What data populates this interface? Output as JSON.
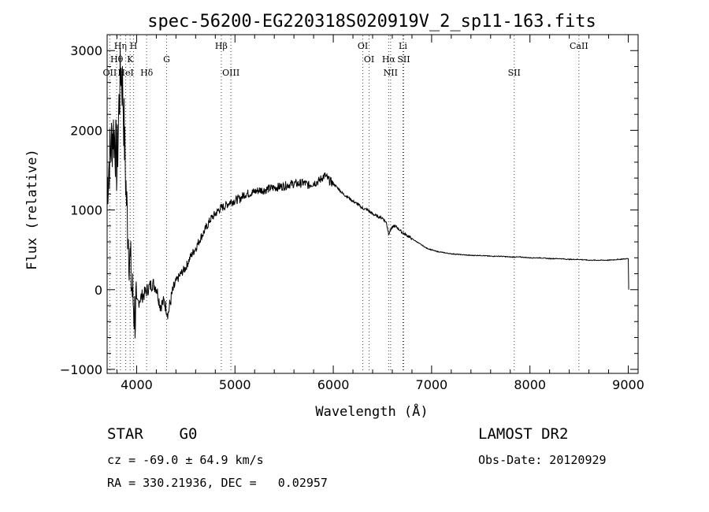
{
  "chart_data": {
    "type": "line",
    "title": "spec-56200-EG220318S020919V_2_sp11-163.fits",
    "xlabel": "Wavelength (Å)",
    "ylabel": "Flux (relative)",
    "xlim": [
      3700,
      9100
    ],
    "ylim": [
      -1050,
      3200
    ],
    "xticks": [
      4000,
      5000,
      6000,
      7000,
      8000,
      9000
    ],
    "yticks": [
      -1000,
      0,
      1000,
      2000,
      3000
    ],
    "grid": false,
    "line_color": "#000000",
    "marker_color": "#cc0000",
    "series": [
      {
        "x": [
          3700,
          3720,
          3740,
          3760,
          3780,
          3800,
          3820,
          3840,
          3860,
          3880,
          3900,
          3920,
          3940,
          3960,
          3980,
          4000,
          4040,
          4080,
          4120,
          4160,
          4200,
          4240,
          4280,
          4320,
          4360,
          4400,
          4450,
          4500,
          4550,
          4600,
          4650,
          4700,
          4750,
          4800,
          4850,
          4900,
          4950,
          5000,
          5050,
          5100,
          5150,
          5200,
          5250,
          5300,
          5350,
          5400,
          5450,
          5500,
          5550,
          5600,
          5650,
          5700,
          5750,
          5800,
          5850,
          5900,
          5920,
          5950,
          6000,
          6050,
          6100,
          6150,
          6200,
          6250,
          6300,
          6350,
          6400,
          6450,
          6500,
          6540,
          6563,
          6590,
          6620,
          6650,
          6700,
          6750,
          6800,
          6850,
          6900,
          6950,
          7000,
          7050,
          7100,
          7150,
          7200,
          7300,
          7400,
          7500,
          7600,
          7700,
          7800,
          7900,
          8000,
          8100,
          8200,
          8300,
          8400,
          8500,
          8600,
          8700,
          8800,
          8900,
          9000,
          9005
        ],
        "y": [
          1300,
          1600,
          1800,
          2000,
          1900,
          1500,
          2300,
          2800,
          2500,
          1700,
          1000,
          600,
          200,
          -100,
          -300,
          -200,
          -100,
          -50,
          20,
          80,
          30,
          -200,
          -150,
          -300,
          -50,
          100,
          200,
          280,
          420,
          520,
          650,
          760,
          880,
          950,
          1020,
          1050,
          1100,
          1120,
          1140,
          1200,
          1210,
          1230,
          1250,
          1250,
          1270,
          1280,
          1290,
          1300,
          1320,
          1330,
          1330,
          1340,
          1310,
          1340,
          1360,
          1420,
          1430,
          1380,
          1330,
          1270,
          1200,
          1160,
          1110,
          1070,
          1020,
          1000,
          950,
          920,
          900,
          840,
          700,
          770,
          800,
          780,
          720,
          680,
          640,
          600,
          560,
          520,
          500,
          480,
          470,
          460,
          450,
          440,
          430,
          430,
          420,
          420,
          410,
          410,
          400,
          400,
          390,
          390,
          380,
          380,
          370,
          370,
          370,
          380,
          390,
          0
        ]
      }
    ],
    "line_markers": [
      {
        "label": "OII",
        "wavelength": 3727,
        "row": 3
      },
      {
        "label": "Hθ",
        "wavelength": 3797,
        "row": 2
      },
      {
        "label": "Hη",
        "wavelength": 3835,
        "row": 1
      },
      {
        "label": "HeI",
        "wavelength": 3889,
        "row": 3
      },
      {
        "label": "K",
        "wavelength": 3934,
        "row": 2
      },
      {
        "label": "H",
        "wavelength": 3969,
        "row": 1
      },
      {
        "label": "Hδ",
        "wavelength": 4102,
        "row": 3
      },
      {
        "label": "G",
        "wavelength": 4305,
        "row": 2
      },
      {
        "label": "Hβ",
        "wavelength": 4861,
        "row": 1
      },
      {
        "label": "OIII",
        "wavelength": 4959,
        "row": 3
      },
      {
        "label": "OI",
        "wavelength": 6300,
        "row": 1
      },
      {
        "label": "OI",
        "wavelength": 6364,
        "row": 2
      },
      {
        "label": "Hα",
        "wavelength": 6563,
        "row": 2
      },
      {
        "label": "NII",
        "wavelength": 6583,
        "row": 3
      },
      {
        "label": "Li",
        "wavelength": 6708,
        "row": 1
      },
      {
        "label": "SII",
        "wavelength": 6716,
        "row": 2
      },
      {
        "label": "SII",
        "wavelength": 7840,
        "row": 3
      },
      {
        "label": "CaII",
        "wavelength": 8498,
        "row": 1
      }
    ]
  },
  "info": {
    "classification": "STAR    G0",
    "survey": "LAMOST DR2",
    "cz": "cz = -69.0 ± 64.9 km/s",
    "obs_date": "Obs-Date: 20120929",
    "radec": "RA = 330.21936, DEC =   0.02957"
  }
}
